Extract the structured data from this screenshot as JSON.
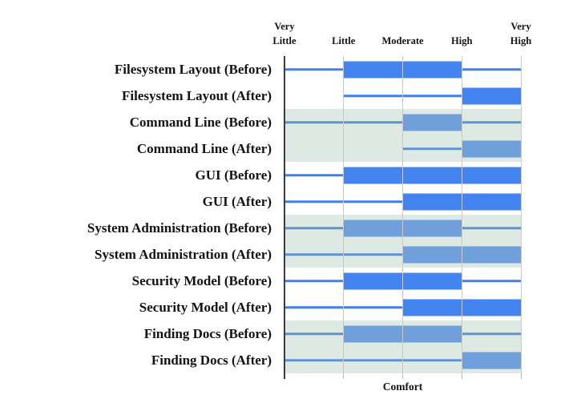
{
  "chart_data": {
    "type": "box",
    "title": "",
    "xlabel": "Comfort",
    "grid": true,
    "legend": null,
    "x_axis": {
      "position": "top",
      "tick_labels": [
        "Very\nLittle",
        "Little",
        "Moderate",
        "High",
        "Very\nHigh"
      ],
      "tick_values": [
        1,
        2,
        3,
        4,
        5
      ],
      "range": [
        1,
        5
      ]
    },
    "rows": [
      {
        "label": "Filesystem Layout (Before)",
        "whisker_low": 1,
        "box_low": 2,
        "box_high": 4,
        "whisker_high": 5,
        "shaded": false
      },
      {
        "label": "Filesystem Layout (After)",
        "whisker_low": 2,
        "box_low": 4,
        "box_high": 5,
        "whisker_high": 5,
        "shaded": false
      },
      {
        "label": "Command Line (Before)",
        "whisker_low": 1,
        "box_low": 3,
        "box_high": 4,
        "whisker_high": 5,
        "shaded": true
      },
      {
        "label": "Command Line (After)",
        "whisker_low": 3,
        "box_low": 4,
        "box_high": 5,
        "whisker_high": 5,
        "shaded": true
      },
      {
        "label": "GUI (Before)",
        "whisker_low": 1,
        "box_low": 2,
        "box_high": 5,
        "whisker_high": 5,
        "shaded": false
      },
      {
        "label": "GUI (After)",
        "whisker_low": 1,
        "box_low": 3,
        "box_high": 5,
        "whisker_high": 5,
        "shaded": false
      },
      {
        "label": "System Administration (Before)",
        "whisker_low": 1,
        "box_low": 2,
        "box_high": 4,
        "whisker_high": 5,
        "shaded": true
      },
      {
        "label": "System Administration (After)",
        "whisker_low": 1,
        "box_low": 3,
        "box_high": 5,
        "whisker_high": 5,
        "shaded": true
      },
      {
        "label": "Security Model (Before)",
        "whisker_low": 1,
        "box_low": 2,
        "box_high": 4,
        "whisker_high": 5,
        "shaded": false
      },
      {
        "label": "Security Model (After)",
        "whisker_low": 1,
        "box_low": 3,
        "box_high": 5,
        "whisker_high": 5,
        "shaded": false
      },
      {
        "label": "Finding Docs (Before)",
        "whisker_low": 1,
        "box_low": 2,
        "box_high": 4,
        "whisker_high": 5,
        "shaded": true
      },
      {
        "label": "Finding Docs (After)",
        "whisker_low": 1,
        "box_low": 4,
        "box_high": 5,
        "whisker_high": 5,
        "shaded": true
      }
    ],
    "colors": {
      "box_plain": "#4484F0",
      "whisker_plain": "#4180EA",
      "box_shaded": "#6FA0DC",
      "whisker_shaded": "#5E92D2",
      "stripe_bg": "#DFE9E4",
      "gridline": "#C6CBC9",
      "tick": "#B4BAB7",
      "axis_line": "#3C3C3C",
      "text": "#141414"
    }
  }
}
